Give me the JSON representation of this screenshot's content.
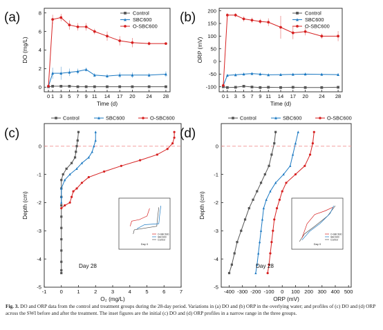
{
  "caption": {
    "label": "Fig. 3.",
    "text": "DO and ORP data from the control and treatment groups during the 28-day period. Variations in (a) DO and (b) ORP in the overlying water; and profiles of (c) DO and (d) ORP across the SWI before and after the treatment. The inset figures are the initial (c) DO and (d) ORP profiles in a narrow range in the three groups."
  },
  "series_colors": {
    "Control": "#555555",
    "SBC600": "#1a78c2",
    "O-SBC600": "#d62020"
  },
  "chart_data": [
    {
      "id": "a",
      "panel_label": "(a)",
      "type": "line",
      "xlabel": "Time (d)",
      "ylabel": "DO (mg/L)",
      "xlim": [
        -1,
        29
      ],
      "ylim": [
        -0.5,
        8.5
      ],
      "xticks": [
        0,
        1,
        3,
        5,
        7,
        9,
        11,
        14,
        17,
        20,
        24,
        28
      ],
      "xtick_labels": [
        "0",
        "1",
        "3",
        "5",
        "7",
        "9",
        "11",
        "14",
        "17",
        "20",
        "24",
        "28"
      ],
      "yticks": [
        0,
        2,
        4,
        6,
        8
      ],
      "legend": "top-right",
      "x": [
        0,
        1,
        3,
        5,
        7,
        9,
        11,
        14,
        17,
        20,
        24,
        28
      ],
      "series": [
        {
          "name": "Control",
          "values": [
            0.05,
            0.1,
            0.1,
            0.1,
            0.05,
            0.05,
            0.05,
            0.05,
            0.05,
            0.05,
            0.05,
            0.05
          ],
          "err": [
            0.1,
            0.1,
            0.1,
            0.1,
            0.1,
            0.1,
            0.1,
            0.1,
            0.1,
            0.1,
            0.1,
            0.1
          ]
        },
        {
          "name": "SBC600",
          "values": [
            0.1,
            1.5,
            1.5,
            1.6,
            1.7,
            1.9,
            1.3,
            1.2,
            1.3,
            1.3,
            1.3,
            1.4
          ],
          "err": [
            0.2,
            0.6,
            0.7,
            0.4,
            0.3,
            0.2,
            0.2,
            0.2,
            0.3,
            0.3,
            0.2,
            0.3
          ]
        },
        {
          "name": "O-SBC600",
          "values": [
            0.1,
            7.3,
            7.5,
            6.7,
            6.5,
            6.5,
            6.0,
            5.5,
            5.0,
            4.8,
            4.7,
            4.7
          ],
          "err": [
            0.2,
            0.5,
            0.4,
            0.5,
            0.4,
            0.4,
            0.3,
            0.5,
            0.5,
            0.5,
            0.2,
            0.1
          ]
        }
      ]
    },
    {
      "id": "b",
      "panel_label": "(b)",
      "type": "line",
      "xlabel": "Time (d)",
      "ylabel": "ORP (mV)",
      "xlim": [
        -1,
        29
      ],
      "ylim": [
        -120,
        210
      ],
      "xticks": [
        0,
        1,
        3,
        5,
        7,
        9,
        11,
        14,
        17,
        20,
        24,
        28
      ],
      "xtick_labels": [
        "0",
        "1",
        "3",
        "5",
        "7",
        "9",
        "11",
        "14",
        "17",
        "20",
        "24",
        "28"
      ],
      "yticks": [
        -100,
        -50,
        0,
        50,
        100,
        150,
        200
      ],
      "legend": "top-right",
      "x": [
        0,
        1,
        3,
        5,
        7,
        9,
        11,
        14,
        17,
        20,
        24,
        28
      ],
      "series": [
        {
          "name": "Control",
          "values": [
            -100,
            -103,
            -102,
            -98,
            -101,
            -103,
            -102,
            -103,
            -102,
            -103,
            -103,
            -102
          ],
          "err": [
            3,
            3,
            3,
            3,
            3,
            3,
            3,
            3,
            3,
            3,
            3,
            3
          ]
        },
        {
          "name": "SBC600",
          "values": [
            -95,
            -55,
            -53,
            -50,
            -48,
            -50,
            -53,
            -52,
            -51,
            -50,
            -51,
            -52
          ],
          "err": [
            5,
            5,
            5,
            4,
            4,
            4,
            4,
            4,
            4,
            4,
            4,
            4
          ]
        },
        {
          "name": "O-SBC600",
          "values": [
            -95,
            183,
            183,
            168,
            163,
            158,
            155,
            135,
            113,
            118,
            100,
            100
          ],
          "err": [
            5,
            8,
            8,
            10,
            10,
            10,
            15,
            45,
            25,
            15,
            10,
            20
          ]
        }
      ]
    },
    {
      "id": "c",
      "panel_label": "(c)",
      "type": "line",
      "xlabel": "O₂ (mg/L)",
      "ylabel": "Depth (cm)",
      "xlim": [
        -1,
        7
      ],
      "ylim": [
        -5,
        0.8
      ],
      "xticks": [
        -1,
        0,
        1,
        2,
        3,
        4,
        5,
        6,
        7
      ],
      "xtick_labels": [
        "-1",
        "0",
        "1",
        "2",
        "3",
        "4",
        "5",
        "6",
        "7"
      ],
      "yticks": [
        0,
        -1,
        -2,
        -3,
        -4,
        -5
      ],
      "legend": "top-outside",
      "annotation": "Day 28",
      "inset_annotation": "Day 0",
      "swi_depth": 0,
      "series": [
        {
          "name": "Control",
          "x": [
            1.0,
            0.95,
            0.9,
            0.85,
            0.8,
            0.6,
            0.3,
            0.1,
            0.0,
            0.0,
            0.0,
            0.0,
            0.0,
            0.0,
            0.0,
            0.0,
            0.0,
            0.0,
            0.0
          ],
          "y": [
            0.5,
            0.2,
            0,
            -0.2,
            -0.4,
            -0.6,
            -0.8,
            -1.0,
            -1.2,
            -1.5,
            -1.8,
            -2.1,
            -2.5,
            -2.9,
            -3.3,
            -3.7,
            -4.1,
            -4.4,
            -4.5
          ]
        },
        {
          "name": "SBC600",
          "x": [
            2.0,
            2.0,
            1.9,
            1.8,
            1.6,
            1.2,
            0.9,
            0.5,
            0.2,
            0.0,
            0.0,
            0.0
          ],
          "y": [
            0.5,
            0.2,
            0,
            -0.2,
            -0.4,
            -0.6,
            -0.8,
            -1.0,
            -1.2,
            -1.5,
            -1.8,
            -2.0
          ]
        },
        {
          "name": "O-SBC600",
          "x": [
            6.6,
            6.6,
            6.5,
            6.2,
            5.6,
            4.6,
            3.5,
            2.5,
            1.6,
            1.2,
            0.9,
            0.7,
            0.6,
            0.5,
            0.2,
            0.0
          ],
          "y": [
            0.5,
            0.3,
            0.1,
            -0.1,
            -0.3,
            -0.5,
            -0.7,
            -0.9,
            -1.1,
            -1.3,
            -1.5,
            -1.6,
            -1.8,
            -2.0,
            -2.1,
            -2.2
          ]
        }
      ]
    },
    {
      "id": "d",
      "panel_label": "(d)",
      "type": "line",
      "xlabel": "ORP (mV)",
      "ylabel": "Depth (cm)",
      "xlim": [
        -460,
        520
      ],
      "ylim": [
        -5,
        0.8
      ],
      "xticks": [
        -400,
        -300,
        -200,
        -100,
        0,
        100,
        200,
        300,
        400,
        500
      ],
      "xtick_labels": [
        "-400",
        "-300",
        "-200",
        "-100",
        "0",
        "100",
        "200",
        "300",
        "400",
        "500"
      ],
      "yticks": [
        0,
        -1,
        -2,
        -3,
        -4,
        -5
      ],
      "legend": "top-outside",
      "annotation": "Day 28",
      "inset_annotation": "Day 0",
      "swi_depth": 0,
      "series": [
        {
          "name": "Control",
          "x": [
            -50,
            -60,
            -80,
            -100,
            -130,
            -160,
            -190,
            -220,
            -250,
            -280,
            -310,
            -340,
            -360,
            -380,
            -400
          ],
          "y": [
            0.5,
            0.1,
            -0.3,
            -0.7,
            -1.0,
            -1.3,
            -1.6,
            -1.9,
            -2.2,
            -2.6,
            -3.0,
            -3.4,
            -3.8,
            -4.2,
            -4.5
          ]
        },
        {
          "name": "SBC600",
          "x": [
            120,
            100,
            80,
            60,
            10,
            -50,
            -90,
            -120,
            -140,
            -150,
            -160,
            -170,
            -180,
            -190,
            -200
          ],
          "y": [
            0.5,
            0.1,
            -0.3,
            -0.7,
            -1.0,
            -1.3,
            -1.6,
            -1.9,
            -2.2,
            -2.6,
            -3.0,
            -3.4,
            -3.8,
            -4.2,
            -4.5
          ]
        },
        {
          "name": "O-SBC600",
          "x": [
            240,
            230,
            210,
            170,
            100,
            30,
            0,
            -20,
            -40,
            -60,
            -70,
            -80,
            -90,
            -100,
            -110
          ],
          "y": [
            0.5,
            0.1,
            -0.3,
            -0.7,
            -1.0,
            -1.3,
            -1.6,
            -1.9,
            -2.2,
            -2.6,
            -3.0,
            -3.4,
            -3.8,
            -4.2,
            -4.5
          ]
        }
      ]
    }
  ]
}
